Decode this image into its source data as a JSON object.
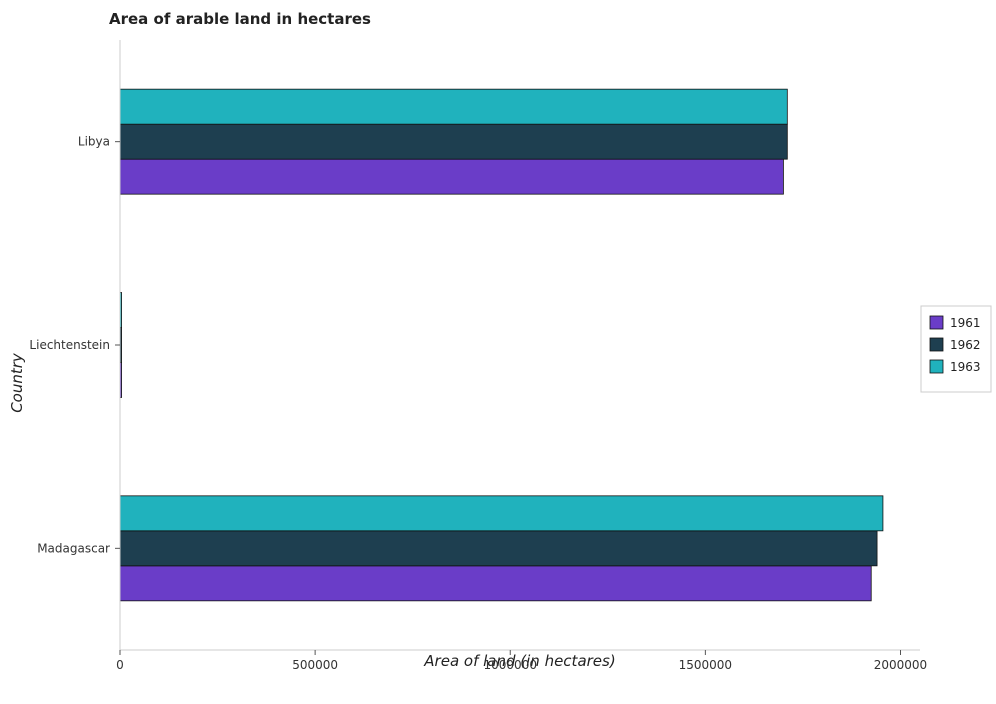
{
  "chart_data": {
    "type": "bar",
    "orientation": "horizontal",
    "title": "Area of arable land in hectares",
    "xlabel": "Area of land (in hectares)",
    "ylabel": "Country",
    "categories": [
      "Libya",
      "Liechtenstein",
      "Madagascar"
    ],
    "series": [
      {
        "name": "1961",
        "color": "#6a3dc8",
        "values": [
          1700000,
          4000,
          1925000
        ]
      },
      {
        "name": "1962",
        "color": "#1e3f50",
        "values": [
          1710000,
          4000,
          1940000
        ]
      },
      {
        "name": "1963",
        "color": "#20b2bd",
        "values": [
          1710000,
          4000,
          1955000
        ]
      }
    ],
    "xlim": [
      0,
      2050000
    ],
    "xticks": [
      0,
      500000,
      1000000,
      1500000,
      2000000
    ],
    "xtick_labels": [
      "0",
      "500000",
      "1000000",
      "1500000",
      "2000000"
    ],
    "legend_position": "right",
    "grid": false
  }
}
